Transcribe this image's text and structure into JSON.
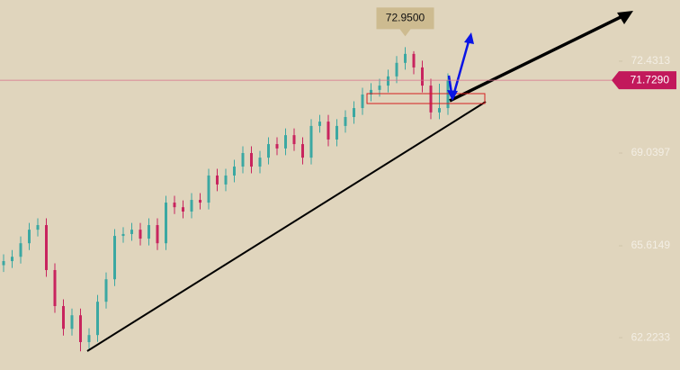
{
  "chart_data": {
    "type": "candlestick",
    "ylim": [
      61.03,
      74.69
    ],
    "yticks": [
      72.4313,
      69.0397,
      65.6149,
      62.2233
    ],
    "up_color": "#3ba8a2",
    "down_color": "#c8245e",
    "open": [
      64.9,
      65.05,
      65.21,
      65.71,
      66.21,
      66.38,
      64.72,
      63.39,
      62.55,
      63.05,
      62.06,
      62.32,
      63.55,
      64.38,
      65.98,
      66.05,
      66.21,
      65.88,
      66.38,
      65.71,
      67.21,
      67.04,
      66.88,
      67.31,
      67.21,
      68.21,
      67.88,
      68.21,
      68.54,
      69.04,
      68.54,
      68.87,
      69.37,
      69.21,
      69.7,
      69.37,
      68.87,
      70.04,
      70.2,
      69.54,
      70.04,
      70.37,
      70.7,
      71.2,
      71.37,
      71.53,
      71.87,
      72.37,
      72.7,
      72.2,
      71.53,
      70.54,
      70.7
    ],
    "high": [
      65.3,
      65.46,
      65.96,
      66.46,
      66.63,
      66.63,
      64.97,
      63.64,
      63.3,
      63.3,
      62.57,
      63.8,
      64.63,
      66.23,
      66.3,
      66.46,
      66.46,
      66.63,
      66.63,
      67.46,
      67.46,
      67.29,
      67.56,
      67.56,
      68.46,
      68.46,
      68.46,
      68.79,
      69.29,
      69.29,
      69.12,
      69.62,
      69.62,
      69.95,
      69.95,
      69.62,
      70.29,
      70.45,
      70.45,
      70.29,
      70.62,
      70.95,
      71.45,
      71.62,
      71.78,
      72.12,
      72.62,
      72.95,
      72.8,
      72.45,
      71.78,
      71.6,
      71.98
    ],
    "low": [
      64.65,
      64.8,
      64.96,
      65.46,
      65.96,
      64.47,
      63.14,
      62.3,
      62.3,
      61.72,
      61.81,
      62.07,
      63.3,
      64.13,
      65.73,
      65.8,
      65.63,
      65.63,
      65.46,
      65.46,
      66.79,
      66.63,
      66.63,
      66.96,
      66.96,
      67.63,
      67.63,
      67.96,
      68.29,
      68.29,
      68.29,
      68.62,
      68.96,
      68.96,
      69.12,
      68.62,
      68.62,
      69.79,
      69.29,
      69.29,
      69.79,
      70.12,
      70.45,
      70.95,
      71.12,
      71.28,
      71.62,
      72.12,
      71.95,
      71.28,
      70.29,
      70.29,
      70.45
    ],
    "close": [
      65.05,
      65.21,
      65.71,
      66.21,
      66.38,
      64.72,
      63.39,
      62.55,
      63.05,
      62.06,
      62.32,
      63.55,
      64.38,
      65.98,
      66.05,
      66.21,
      65.88,
      66.38,
      65.71,
      67.21,
      67.04,
      66.88,
      67.31,
      67.21,
      68.21,
      67.88,
      68.21,
      68.54,
      69.04,
      68.54,
      68.87,
      69.37,
      69.21,
      69.7,
      69.37,
      68.87,
      70.04,
      70.2,
      69.54,
      70.04,
      70.37,
      70.7,
      71.2,
      71.37,
      71.53,
      71.87,
      72.37,
      72.7,
      72.2,
      71.53,
      70.54,
      70.7,
      71.73
    ],
    "current_price": {
      "value": 71.729,
      "label": "71.7290"
    },
    "peak_label": {
      "value": 72.95,
      "label": "72.9500"
    }
  }
}
